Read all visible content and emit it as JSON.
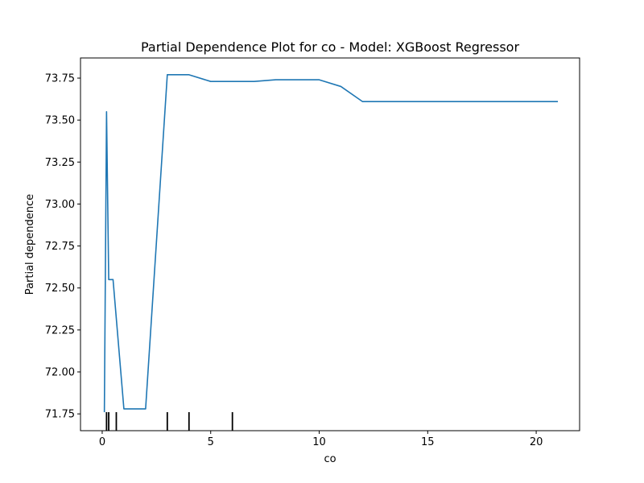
{
  "chart_data": {
    "type": "line",
    "title": "Partial Dependence Plot for co - Model: XGBoost Regressor",
    "xlabel": "co",
    "ylabel": "Partial dependence",
    "xlim": [
      -1.0,
      22.0
    ],
    "ylim": [
      71.65,
      73.87
    ],
    "x_ticks": [
      0,
      5,
      10,
      15,
      20
    ],
    "x_tick_labels": [
      "0",
      "5",
      "10",
      "15",
      "20"
    ],
    "y_ticks": [
      71.75,
      72.0,
      72.25,
      72.5,
      72.75,
      73.0,
      73.25,
      73.5,
      73.75
    ],
    "y_tick_labels": [
      "71.75",
      "72.00",
      "72.25",
      "72.50",
      "72.75",
      "73.00",
      "73.25",
      "73.50",
      "73.75"
    ],
    "grid": false,
    "series": [
      {
        "color": "#1f77b4",
        "x": [
          0.1,
          0.2,
          0.3,
          0.5,
          1.0,
          2.0,
          3.0,
          4.0,
          5.0,
          6.0,
          7.0,
          8.0,
          9.0,
          10.0,
          11.0,
          12.0,
          13.0,
          14.0,
          15.0,
          16.0,
          17.0,
          18.0,
          19.0,
          20.0,
          21.0
        ],
        "y": [
          71.76,
          73.55,
          72.55,
          72.55,
          71.78,
          71.78,
          73.77,
          73.77,
          73.73,
          73.73,
          73.73,
          73.74,
          73.74,
          73.74,
          73.7,
          73.61,
          73.61,
          73.61,
          73.61,
          73.61,
          73.61,
          73.61,
          73.61,
          73.61,
          73.61
        ]
      }
    ],
    "rug_x": [
      0.2,
      0.3,
      0.65,
      3.0,
      4.0,
      6.0
    ]
  }
}
